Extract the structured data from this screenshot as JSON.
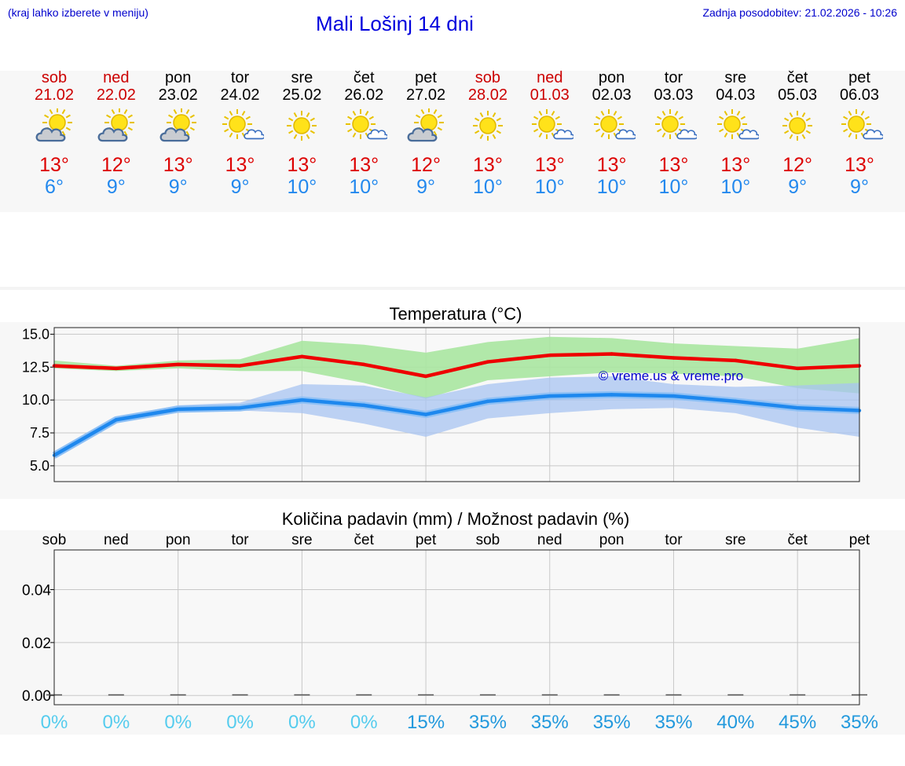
{
  "header": {
    "left_note": "(kraj lahko izberete v meniju)",
    "title": "Mali Lošinj 14 dni",
    "updated": "Zadnja posodobitev: 21.02.2026 - 10:26"
  },
  "days": [
    {
      "name": "sob",
      "date": "21.02",
      "weekend": true,
      "icon": "partly-cloudy-icon",
      "max": "13°",
      "min": "6°"
    },
    {
      "name": "ned",
      "date": "22.02",
      "weekend": true,
      "icon": "partly-cloudy-icon",
      "max": "12°",
      "min": "9°"
    },
    {
      "name": "pon",
      "date": "23.02",
      "weekend": false,
      "icon": "partly-cloudy-icon",
      "max": "13°",
      "min": "9°"
    },
    {
      "name": "tor",
      "date": "24.02",
      "weekend": false,
      "icon": "mostly-sunny-icon",
      "max": "13°",
      "min": "9°"
    },
    {
      "name": "sre",
      "date": "25.02",
      "weekend": false,
      "icon": "sunny-icon",
      "max": "13°",
      "min": "10°"
    },
    {
      "name": "čet",
      "date": "26.02",
      "weekend": false,
      "icon": "mostly-sunny-icon",
      "max": "13°",
      "min": "10°"
    },
    {
      "name": "pet",
      "date": "27.02",
      "weekend": false,
      "icon": "partly-cloudy-icon",
      "max": "12°",
      "min": "9°"
    },
    {
      "name": "sob",
      "date": "28.02",
      "weekend": true,
      "icon": "sunny-icon",
      "max": "13°",
      "min": "10°"
    },
    {
      "name": "ned",
      "date": "01.03",
      "weekend": true,
      "icon": "mostly-sunny-icon",
      "max": "13°",
      "min": "10°"
    },
    {
      "name": "pon",
      "date": "02.03",
      "weekend": false,
      "icon": "mostly-sunny-icon",
      "max": "13°",
      "min": "10°"
    },
    {
      "name": "tor",
      "date": "03.03",
      "weekend": false,
      "icon": "mostly-sunny-icon",
      "max": "13°",
      "min": "10°"
    },
    {
      "name": "sre",
      "date": "04.03",
      "weekend": false,
      "icon": "mostly-sunny-icon",
      "max": "13°",
      "min": "10°"
    },
    {
      "name": "čet",
      "date": "05.03",
      "weekend": false,
      "icon": "sunny-icon",
      "max": "12°",
      "min": "9°"
    },
    {
      "name": "pet",
      "date": "06.03",
      "weekend": false,
      "icon": "mostly-sunny-icon",
      "max": "13°",
      "min": "9°"
    }
  ],
  "colors": {
    "max_line": "#ee0000",
    "min_line": "#1e88ee",
    "max_band": "#a8e6a0",
    "min_band": "#a8c4f2",
    "overlap": "#6cbe8e",
    "grid": "#c8c8c8",
    "watermark": "#0000cc",
    "pct_low": "#55ccee",
    "pct_high": "#2299dd"
  },
  "chart_data": [
    {
      "type": "line",
      "title": "Temperatura (°C)",
      "xlabel": "",
      "ylabel": "",
      "ylim": [
        3.8,
        15.5
      ],
      "yticks": [
        5.0,
        7.5,
        10.0,
        12.5,
        15.0
      ],
      "ytick_labels": [
        "5.0",
        "7.5",
        "10.0",
        "12.5",
        "15.0"
      ],
      "annotation": "© vreme.us & vreme.pro",
      "categories": [
        "21.02",
        "22.02",
        "23.02",
        "24.02",
        "25.02",
        "26.02",
        "27.02",
        "28.02",
        "01.03",
        "02.03",
        "03.03",
        "04.03",
        "05.03",
        "06.03"
      ],
      "series": [
        {
          "name": "max",
          "values": [
            12.6,
            12.4,
            12.7,
            12.6,
            13.3,
            12.7,
            11.8,
            12.9,
            13.4,
            13.5,
            13.2,
            13.0,
            12.4,
            12.6
          ],
          "band_low": [
            12.4,
            12.2,
            12.4,
            12.2,
            12.2,
            11.3,
            10.1,
            11.5,
            11.8,
            12.1,
            12.0,
            11.8,
            10.9,
            10.5
          ],
          "band_high": [
            13.0,
            12.6,
            13.0,
            13.1,
            14.5,
            14.2,
            13.6,
            14.4,
            14.8,
            14.7,
            14.3,
            14.1,
            13.9,
            14.7
          ]
        },
        {
          "name": "min",
          "values": [
            5.8,
            8.5,
            9.3,
            9.4,
            10.0,
            9.6,
            8.9,
            9.9,
            10.3,
            10.4,
            10.3,
            9.9,
            9.4,
            9.2
          ],
          "band_low": [
            5.5,
            8.3,
            9.1,
            9.2,
            9.0,
            8.2,
            7.2,
            8.6,
            9.0,
            9.3,
            9.4,
            9.0,
            7.9,
            7.2
          ],
          "band_high": [
            6.1,
            8.7,
            9.6,
            9.8,
            11.2,
            11.1,
            10.2,
            11.2,
            11.7,
            11.8,
            11.2,
            11.0,
            11.1,
            11.3
          ]
        }
      ]
    },
    {
      "type": "bar",
      "title": "Količina padavin (mm) / Možnost padavin (%)",
      "ylim": [
        -0.0035,
        0.055
      ],
      "yticks": [
        0.0,
        0.02,
        0.04
      ],
      "ytick_labels": [
        "0.00",
        "0.02",
        "0.04"
      ],
      "categories": [
        "sob",
        "ned",
        "pon",
        "tor",
        "sre",
        "čet",
        "pet",
        "sob",
        "ned",
        "pon",
        "tor",
        "sre",
        "čet",
        "pet"
      ],
      "values": [
        0,
        0,
        0,
        0,
        0,
        0,
        0,
        0,
        0,
        0,
        0,
        0,
        0,
        0
      ],
      "chance_labels": [
        "0%",
        "0%",
        "0%",
        "0%",
        "0%",
        "0%",
        "15%",
        "35%",
        "35%",
        "35%",
        "35%",
        "40%",
        "45%",
        "35%"
      ],
      "chance_values": [
        0,
        0,
        0,
        0,
        0,
        0,
        15,
        35,
        35,
        35,
        35,
        40,
        45,
        35
      ]
    }
  ]
}
